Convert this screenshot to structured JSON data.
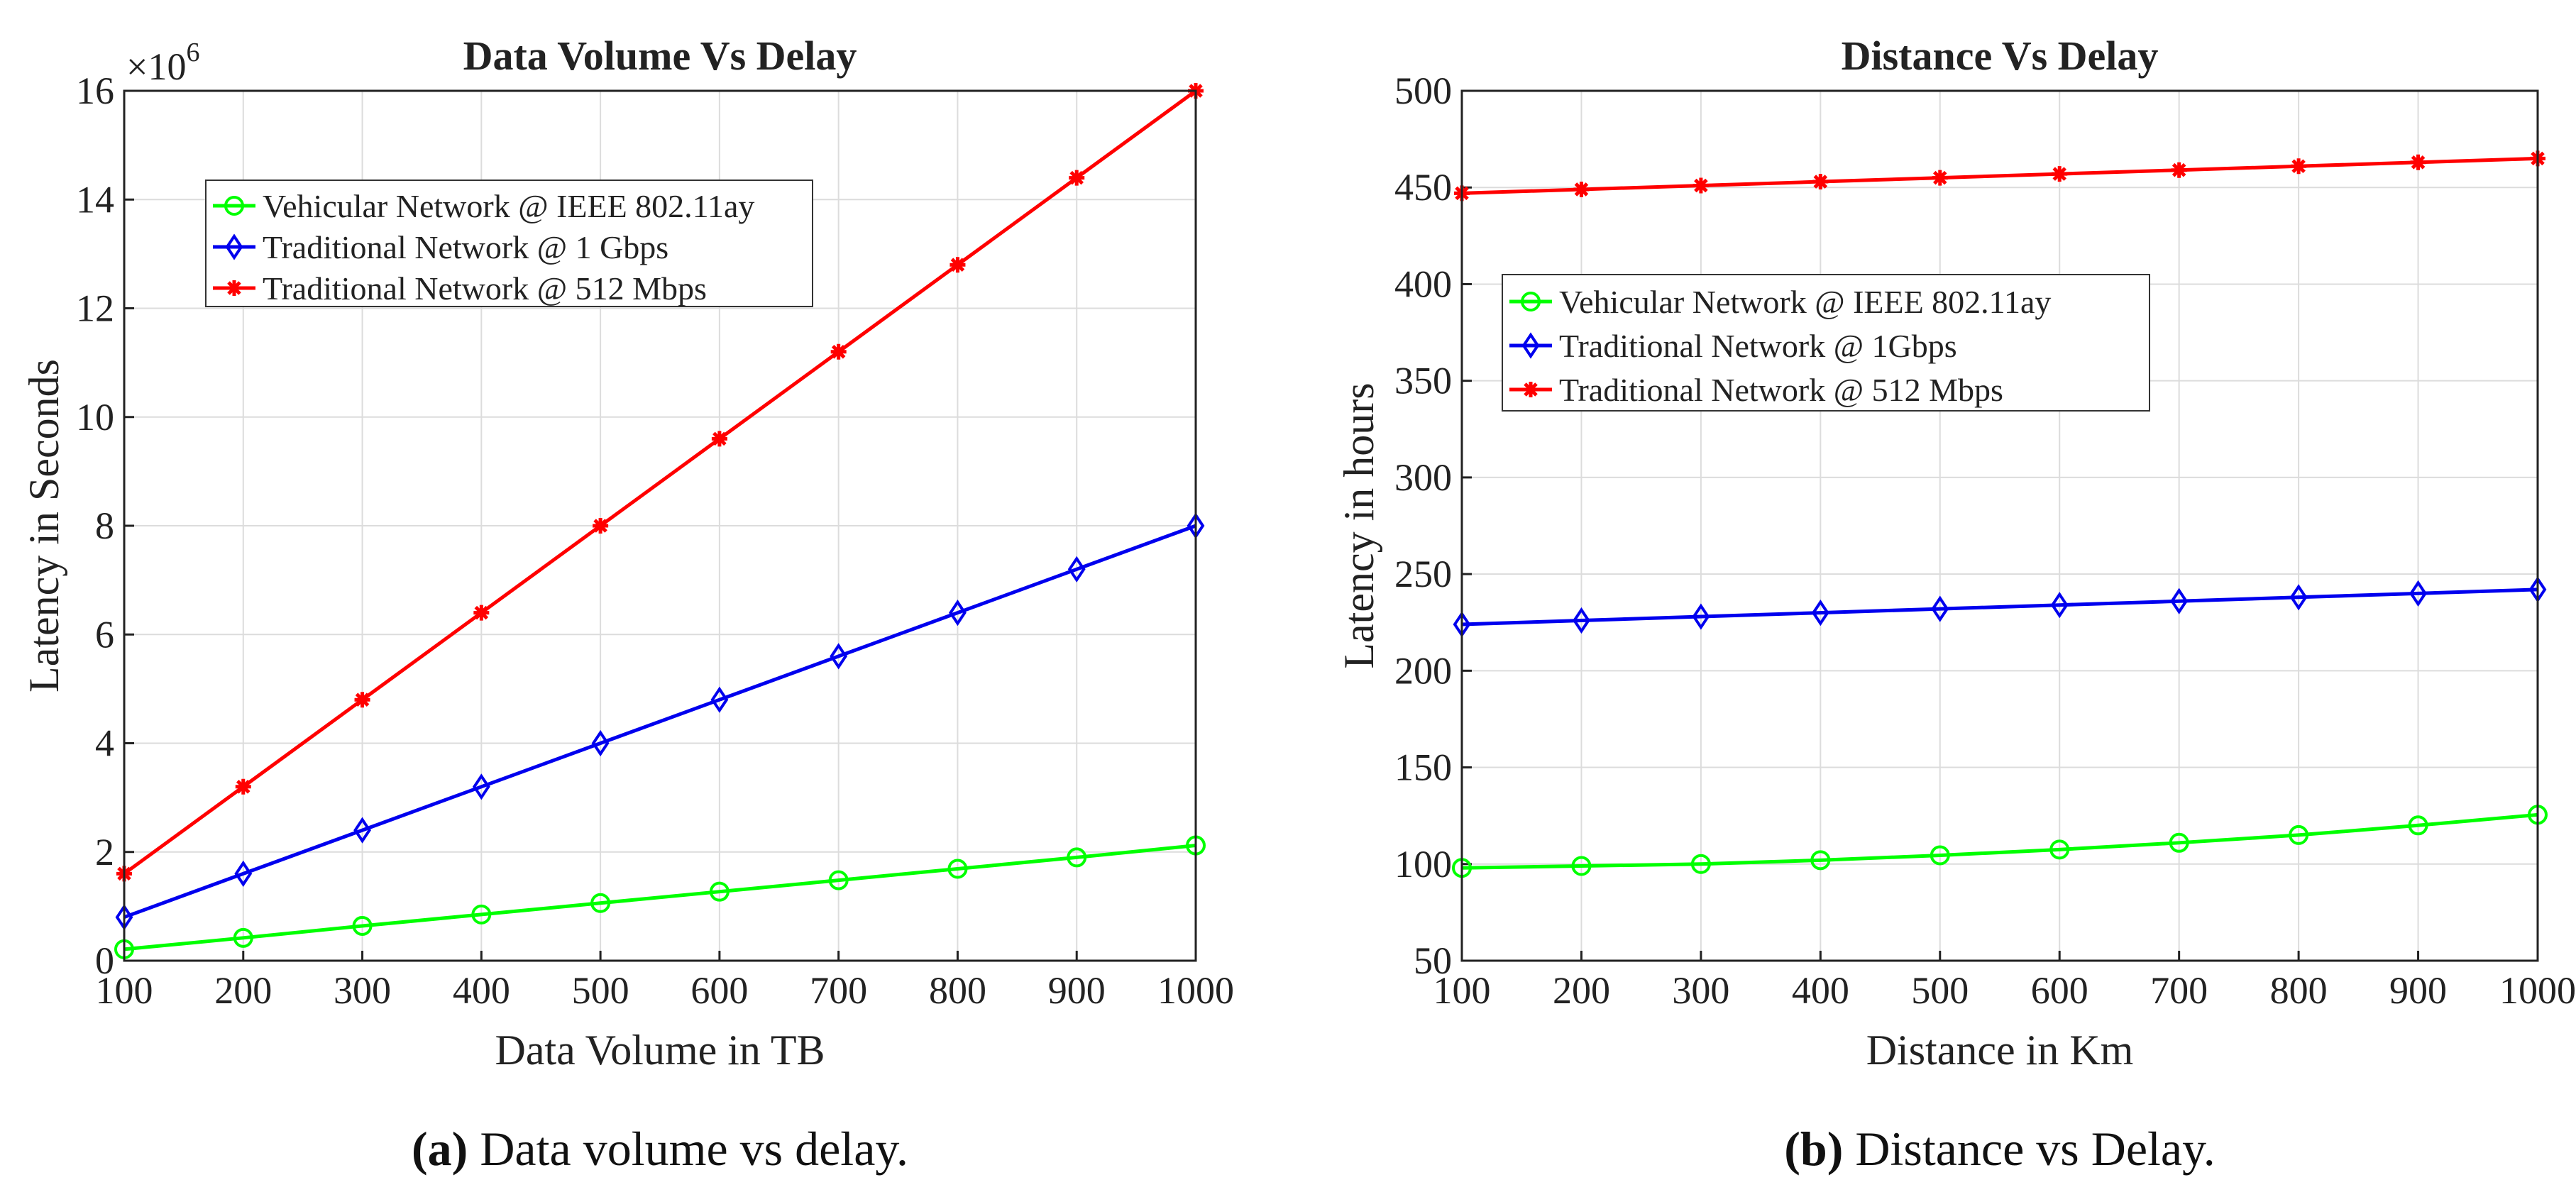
{
  "colors": {
    "green": "#00ff00",
    "blue": "#0000ee",
    "red": "#ff0000"
  },
  "captions": [
    {
      "letter": "(a)",
      "text": " Data volume vs delay."
    },
    {
      "letter": "(b)",
      "text": " Distance vs Delay."
    }
  ],
  "chart_data": [
    {
      "type": "line",
      "title": "Data Volume Vs Delay",
      "xlabel": "Data Volume in TB",
      "ylabel": "Latency in Seconds",
      "exponent_label": "×10",
      "exponent_power": "6",
      "x": [
        100,
        200,
        300,
        400,
        500,
        600,
        700,
        800,
        900,
        1000
      ],
      "xlim": [
        100,
        1000
      ],
      "ylim": [
        0,
        16
      ],
      "xticks": [
        100,
        200,
        300,
        400,
        500,
        600,
        700,
        800,
        900,
        1000
      ],
      "yticks": [
        0,
        2,
        4,
        6,
        8,
        10,
        12,
        14,
        16
      ],
      "grid": true,
      "legend_position": "top-left",
      "series": [
        {
          "name": "Vehicular Network @ IEEE 802.11ay",
          "color": "#00ff00",
          "marker": "circle",
          "values": [
            0.21,
            0.42,
            0.64,
            0.85,
            1.06,
            1.27,
            1.48,
            1.69,
            1.9,
            2.12
          ]
        },
        {
          "name": "Traditional Network @ 1 Gbps",
          "color": "#0000ee",
          "marker": "diamond",
          "values": [
            0.8,
            1.6,
            2.4,
            3.2,
            4.0,
            4.8,
            5.6,
            6.4,
            7.2,
            8.0
          ]
        },
        {
          "name": "Traditional Network @ 512 Mbps",
          "color": "#ff0000",
          "marker": "asterisk",
          "values": [
            1.6,
            3.2,
            4.8,
            6.4,
            8.0,
            9.6,
            11.2,
            12.8,
            14.4,
            16.0
          ]
        }
      ]
    },
    {
      "type": "line",
      "title": "Distance Vs Delay",
      "xlabel": "Distance in Km",
      "ylabel": "Latency in hours",
      "x": [
        100,
        200,
        300,
        400,
        500,
        600,
        700,
        800,
        900,
        1000
      ],
      "xlim": [
        100,
        1000
      ],
      "ylim": [
        50,
        500
      ],
      "xticks": [
        100,
        200,
        300,
        400,
        500,
        600,
        700,
        800,
        900,
        1000
      ],
      "yticks": [
        50,
        100,
        150,
        200,
        250,
        300,
        350,
        400,
        450,
        500
      ],
      "grid": true,
      "legend_position": "middle-left",
      "series": [
        {
          "name": "Vehicular Network @ IEEE 802.11ay",
          "color": "#00ff00",
          "marker": "circle",
          "values": [
            98,
            99,
            100,
            102,
            104.5,
            107.5,
            111,
            115,
            120,
            125.5
          ]
        },
        {
          "name": "Traditional Network @ 1Gbps",
          "color": "#0000ee",
          "marker": "diamond",
          "values": [
            224,
            226,
            228,
            230,
            232,
            234,
            236,
            238,
            240,
            242
          ]
        },
        {
          "name": "Traditional Network @ 512 Mbps",
          "color": "#ff0000",
          "marker": "asterisk",
          "values": [
            447,
            449,
            451,
            453,
            455,
            457,
            459,
            461,
            463,
            465
          ]
        }
      ]
    }
  ]
}
